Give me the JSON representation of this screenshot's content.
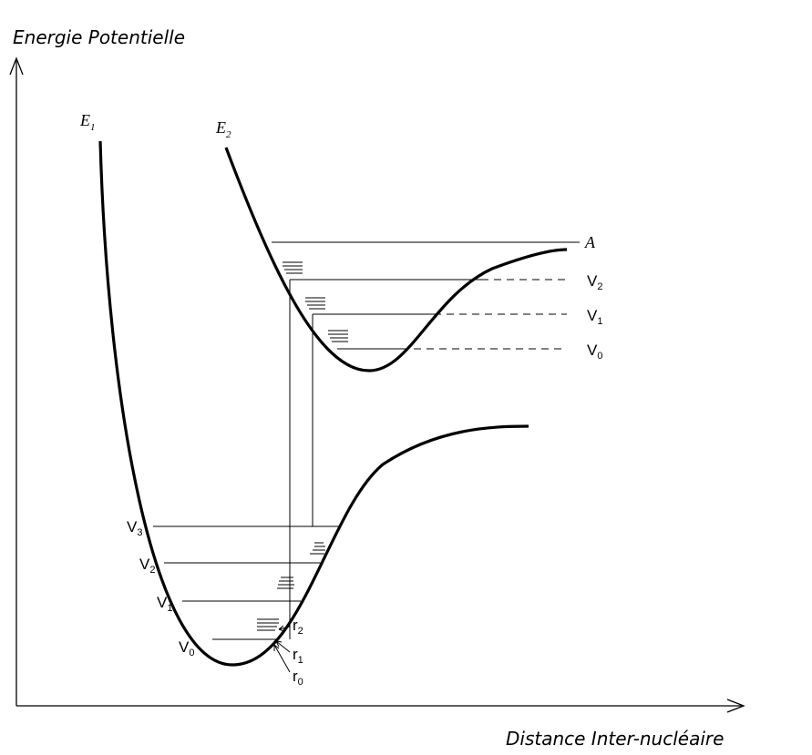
{
  "axes": {
    "y_label": "Energie Potentielle",
    "x_label": "Distance Inter-nucléaire"
  },
  "curves": [
    {
      "base": "E",
      "sub": "1"
    },
    {
      "base": "E",
      "sub": "2"
    }
  ],
  "lower_levels": [
    {
      "base": "V",
      "sub": "0"
    },
    {
      "base": "V",
      "sub": "1"
    },
    {
      "base": "V",
      "sub": "2"
    },
    {
      "base": "V",
      "sub": "3"
    }
  ],
  "upper_levels": [
    {
      "base": "V",
      "sub": "0"
    },
    {
      "base": "V",
      "sub": "1"
    },
    {
      "base": "V",
      "sub": "2"
    }
  ],
  "dissociation_label": "A",
  "radii": [
    {
      "base": "r",
      "sub": "0"
    },
    {
      "base": "r",
      "sub": "1"
    },
    {
      "base": "r",
      "sub": "2"
    }
  ]
}
